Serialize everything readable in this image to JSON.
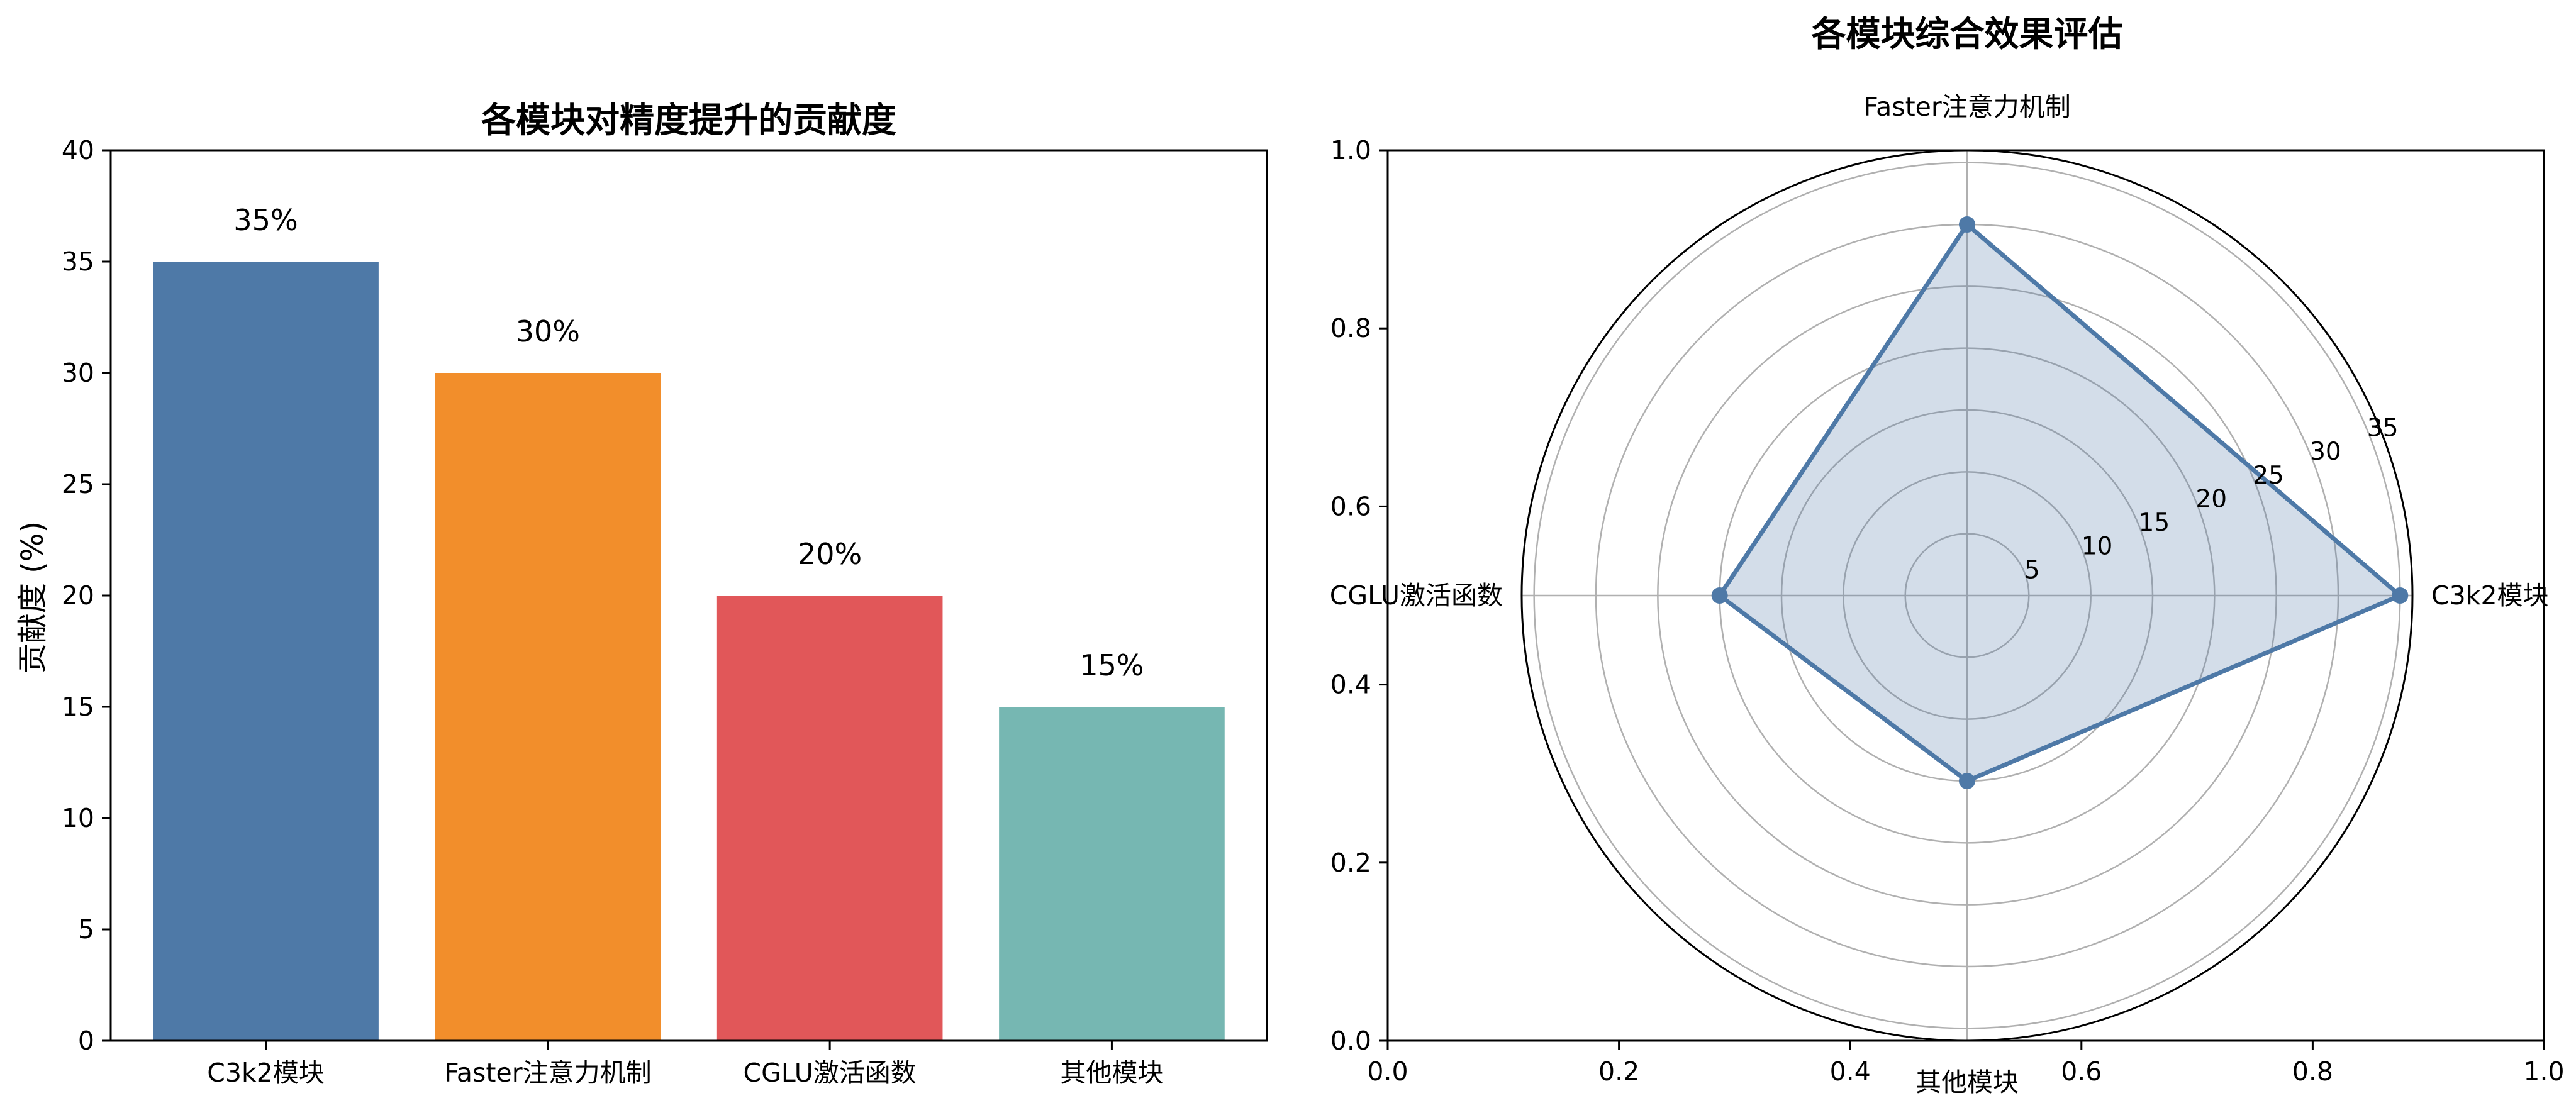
{
  "figure": {
    "chart_data": [
      {
        "type": "bar",
        "title": "各模块对精度提升的贡献度",
        "xlabel": "",
        "ylabel": "贡献度 (%)",
        "categories": [
          "C3k2模块",
          "Faster注意力机制",
          "CGLU激活函数",
          "其他模块"
        ],
        "values": [
          35,
          30,
          20,
          15
        ],
        "value_labels": [
          "35%",
          "30%",
          "20%",
          "15%"
        ],
        "colors": [
          "#4e79a7",
          "#f28e2b",
          "#e15759",
          "#76b7b2"
        ],
        "ylim": [
          0,
          40
        ],
        "yticks": [
          0,
          5,
          10,
          15,
          20,
          25,
          30,
          35,
          40
        ],
        "grid": false
      },
      {
        "type": "radar",
        "title": "各模块综合效果评估",
        "categories": [
          "C3k2模块",
          "Faster注意力机制",
          "CGLU激活函数",
          "其他模块"
        ],
        "values": [
          35,
          30,
          20,
          15
        ],
        "rmax": 36,
        "rticks": [
          5,
          10,
          15,
          20,
          25,
          30,
          35
        ],
        "outer_axes": {
          "xticks": [
            "0.0",
            "0.2",
            "0.4",
            "0.6",
            "0.8",
            "1.0"
          ],
          "yticks": [
            "0.0",
            "0.2",
            "0.4",
            "0.6",
            "0.8",
            "1.0"
          ]
        },
        "color": "#4e79a7",
        "fill_opacity": 0.25,
        "grid": true
      }
    ]
  }
}
